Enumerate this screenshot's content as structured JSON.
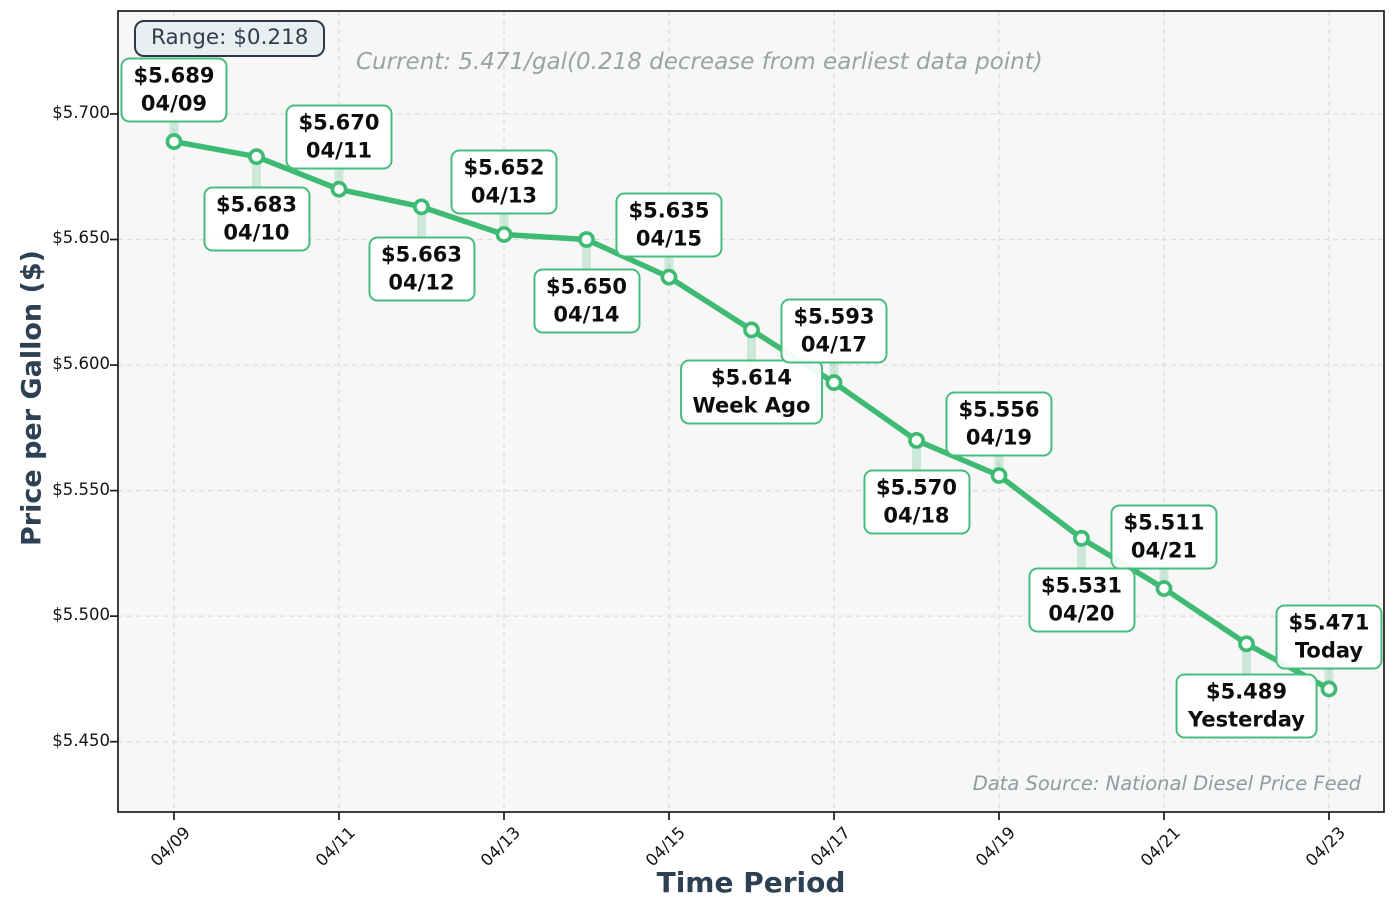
{
  "overlays": {
    "range_badge": "Range: $0.218",
    "current_note": "Current: 5.471/gal(0.218 decrease from earliest data point)",
    "data_source": "Data Source: National Diesel Price Feed"
  },
  "theme": {
    "line_color": "#3eba73",
    "marker_face": "#fbfdfc",
    "callout_border": "#47bd7c",
    "connector_color": "rgba(110,200,145,0.30)",
    "plot_bg": "#f7f7f8",
    "grid_color": "#dcdcdc",
    "spine_color": "#1c1c1c",
    "slate": "#2e4053",
    "note_gray": "#99a3a4",
    "source_gray": "#8d9c9e"
  },
  "chart_data": {
    "type": "line",
    "title": "",
    "xlabel": "Time Period",
    "ylabel": "Price per Gallon ($)",
    "ylim": [
      5.422,
      5.741
    ],
    "grid": true,
    "legend": "none",
    "points": [
      {
        "x": "04/09",
        "y": 5.689,
        "price_label": "$5.689",
        "sub_label": "04/09",
        "callout": "above"
      },
      {
        "x": "04/10",
        "y": 5.683,
        "price_label": "$5.683",
        "sub_label": "04/10",
        "callout": "below"
      },
      {
        "x": "04/11",
        "y": 5.67,
        "price_label": "$5.670",
        "sub_label": "04/11",
        "callout": "above"
      },
      {
        "x": "04/12",
        "y": 5.663,
        "price_label": "$5.663",
        "sub_label": "04/12",
        "callout": "below"
      },
      {
        "x": "04/13",
        "y": 5.652,
        "price_label": "$5.652",
        "sub_label": "04/13",
        "callout": "above"
      },
      {
        "x": "04/14",
        "y": 5.65,
        "price_label": "$5.650",
        "sub_label": "04/14",
        "callout": "below"
      },
      {
        "x": "04/15",
        "y": 5.635,
        "price_label": "$5.635",
        "sub_label": "04/15",
        "callout": "above"
      },
      {
        "x": "04/16",
        "y": 5.614,
        "price_label": "$5.614",
        "sub_label": "Week Ago",
        "callout": "below"
      },
      {
        "x": "04/17",
        "y": 5.593,
        "price_label": "$5.593",
        "sub_label": "04/17",
        "callout": "above"
      },
      {
        "x": "04/18",
        "y": 5.57,
        "price_label": "$5.570",
        "sub_label": "04/18",
        "callout": "below"
      },
      {
        "x": "04/19",
        "y": 5.556,
        "price_label": "$5.556",
        "sub_label": "04/19",
        "callout": "above"
      },
      {
        "x": "04/20",
        "y": 5.531,
        "price_label": "$5.531",
        "sub_label": "04/20",
        "callout": "below"
      },
      {
        "x": "04/21",
        "y": 5.511,
        "price_label": "$5.511",
        "sub_label": "04/21",
        "callout": "above"
      },
      {
        "x": "04/22",
        "y": 5.489,
        "price_label": "$5.489",
        "sub_label": "Yesterday",
        "callout": "below"
      },
      {
        "x": "04/23",
        "y": 5.471,
        "price_label": "$5.471",
        "sub_label": "Today",
        "callout": "above"
      }
    ],
    "x_tick_labels": [
      "04/09",
      "04/11",
      "04/13",
      "04/15",
      "04/17",
      "04/19",
      "04/21",
      "04/23"
    ],
    "y_ticks": [
      {
        "label": "$5.450",
        "value": 5.45
      },
      {
        "label": "$5.500",
        "value": 5.5
      },
      {
        "label": "$5.550",
        "value": 5.55
      },
      {
        "label": "$5.600",
        "value": 5.6
      },
      {
        "label": "$5.650",
        "value": 5.65
      },
      {
        "label": "$5.700",
        "value": 5.7
      }
    ]
  }
}
